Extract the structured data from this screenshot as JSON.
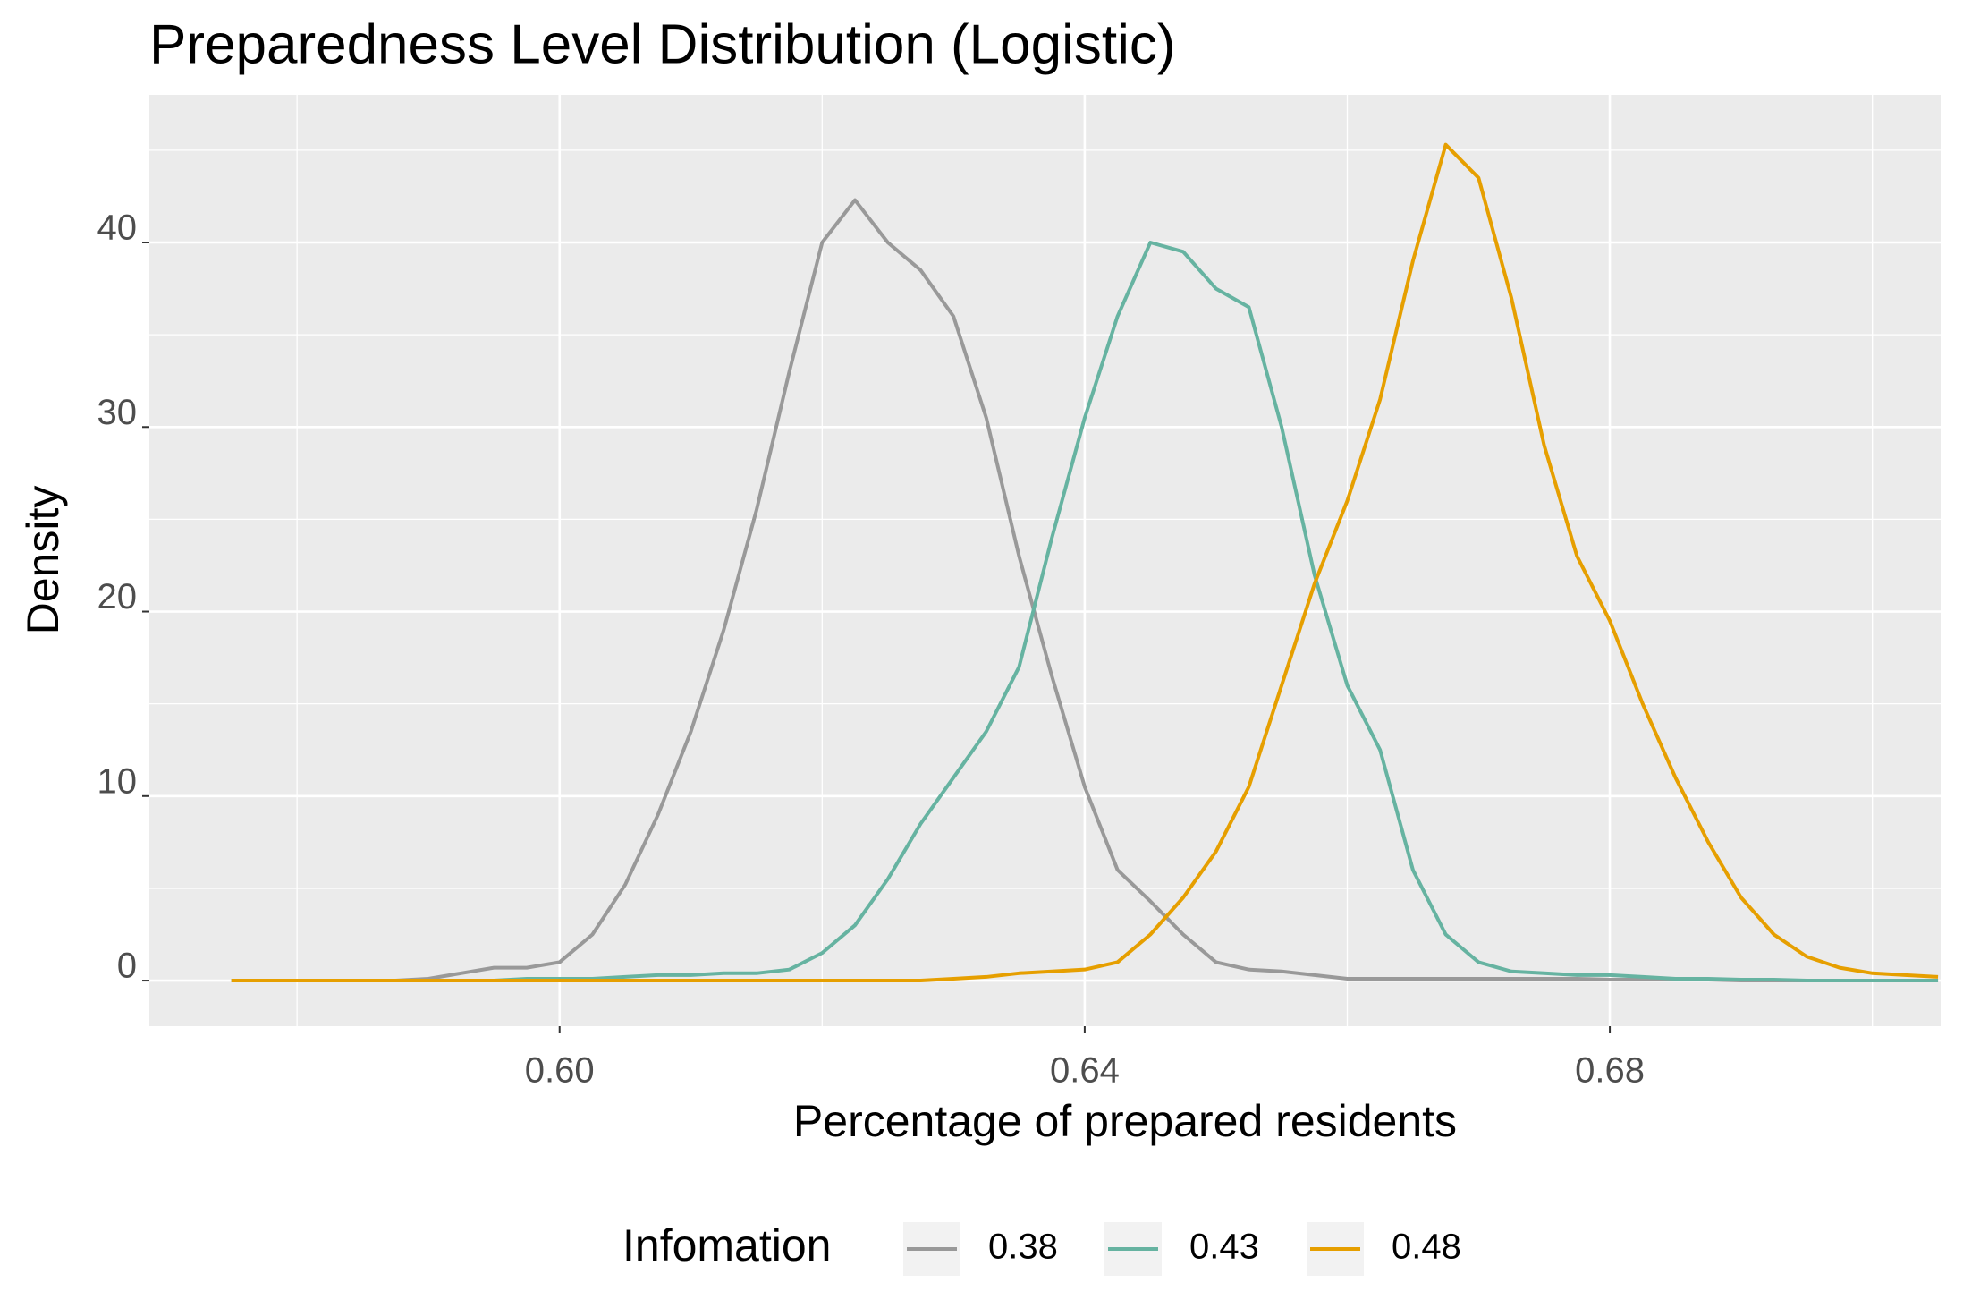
{
  "chart_data": {
    "type": "line",
    "title": "Preparedness Level Distribution (Logistic)",
    "x_label": "Percentage of prepared residents",
    "y_label": "Density",
    "legend_title": "Infomation",
    "legend_position": "bottom",
    "grid": true,
    "xlim": [
      0.56875,
      0.7052
    ],
    "ylim": [
      -2.47,
      48
    ],
    "xticks": [
      {
        "value": 0.6,
        "label": "0.60"
      },
      0.64,
      {
        "value": 0.68,
        "label": "0.68"
      }
    ],
    "yticks": [
      0,
      10,
      20,
      30,
      40
    ],
    "x": [
      0.575,
      0.5775,
      0.58,
      0.5825,
      0.585,
      0.5875,
      0.59,
      0.5925,
      0.595,
      0.5975,
      0.6,
      0.6025,
      0.605,
      0.6075,
      0.61,
      0.6125,
      0.615,
      0.6175,
      0.62,
      0.6225,
      0.625,
      0.6275,
      0.63,
      0.6325,
      0.635,
      0.6375,
      0.64,
      0.6425,
      0.645,
      0.6475,
      0.65,
      0.6525,
      0.655,
      0.6575,
      0.66,
      0.6625,
      0.665,
      0.6675,
      0.67,
      0.6725,
      0.675,
      0.6775,
      0.68,
      0.6825,
      0.685,
      0.6875,
      0.69,
      0.6925,
      0.695,
      0.6975,
      0.7,
      0.7025,
      0.705
    ],
    "series": [
      {
        "name": "0.38",
        "color": "#999999",
        "values": [
          0,
          0,
          0,
          0,
          0,
          0,
          0.1,
          0.4,
          0.7,
          0.7,
          1,
          2.5,
          5.2,
          9,
          13.5,
          19,
          25.5,
          33,
          40,
          42.3,
          40,
          38.5,
          36,
          30.5,
          23,
          16.5,
          10.5,
          6,
          4.3,
          2.5,
          1,
          0.6,
          0.5,
          0.3,
          0.1,
          0.1,
          0.1,
          0.1,
          0.1,
          0.1,
          0.1,
          0.1,
          0.05,
          0.05,
          0.05,
          0.05,
          0,
          0,
          0,
          0,
          0,
          0,
          0
        ]
      },
      {
        "name": "0.43",
        "color": "#66b3a1",
        "values": [
          0,
          0,
          0,
          0,
          0,
          0,
          0,
          0,
          0,
          0.1,
          0.1,
          0.1,
          0.2,
          0.3,
          0.3,
          0.4,
          0.4,
          0.6,
          1.5,
          3,
          5.5,
          8.5,
          11,
          13.5,
          17,
          24,
          30.5,
          36,
          40,
          39.5,
          37.5,
          36.5,
          30,
          22,
          16,
          12.5,
          6,
          2.5,
          1,
          0.5,
          0.4,
          0.3,
          0.3,
          0.2,
          0.1,
          0.1,
          0.05,
          0.05,
          0,
          0,
          0,
          0,
          0
        ]
      },
      {
        "name": "0.48",
        "color": "#e69f00",
        "values": [
          0,
          0,
          0,
          0,
          0,
          0,
          0,
          0,
          0,
          0,
          0,
          0,
          0,
          0,
          0,
          0,
          0,
          0,
          0,
          0,
          0,
          0,
          0.1,
          0.2,
          0.4,
          0.5,
          0.6,
          1,
          2.5,
          4.5,
          7,
          10.5,
          16,
          21.5,
          26,
          31.5,
          39,
          45.3,
          43.5,
          37,
          29,
          23,
          19.5,
          15,
          11,
          7.5,
          4.5,
          2.5,
          1.3,
          0.7,
          0.4,
          0.3,
          0.2
        ]
      }
    ]
  }
}
